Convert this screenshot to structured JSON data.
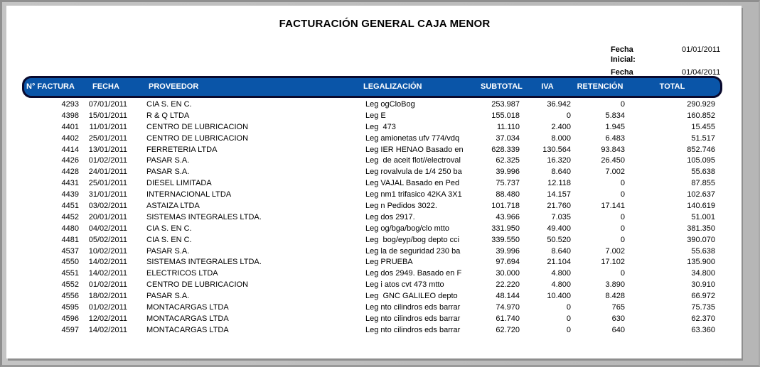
{
  "report": {
    "title": "FACTURACIÓN GENERAL CAJA MENOR",
    "fecha_inicial_label": "Fecha Inicial:",
    "fecha_inicial_value": "01/01/2011",
    "fecha_final_label": "Fecha Final:",
    "fecha_final_value": "01/04/2011"
  },
  "colors": {
    "header_bar_fill": "#0a55a8",
    "header_bar_border": "#0a0a2e",
    "header_text": "#ffffff",
    "body_text": "#000000",
    "page_background": "#ffffff",
    "window_background": "#bdbdbd"
  },
  "table": {
    "columns": [
      "N° FACTURA",
      "FECHA",
      "PROVEEDOR",
      "LEGALIZACIÓN",
      "SUBTOTAL",
      "IVA",
      "RETENCIÓN",
      "TOTAL"
    ],
    "rows": [
      {
        "factura": "4293",
        "fecha": "07/01/2011",
        "proveedor": "CIA S. EN C.",
        "legalizacion": "Leg ogCloBog",
        "subtotal": "253.987",
        "iva": "36.942",
        "retencion": "0",
        "total": "290.929"
      },
      {
        "factura": "4398",
        "fecha": "15/01/2011",
        "proveedor": "R & Q LTDA",
        "legalizacion": "Leg E",
        "subtotal": "155.018",
        "iva": "0",
        "retencion": "5.834",
        "total": "160.852"
      },
      {
        "factura": "4401",
        "fecha": "11/01/2011",
        "proveedor": "CENTRO DE LUBRICACION",
        "legalizacion": "Leg  473",
        "subtotal": "11.110",
        "iva": "2.400",
        "retencion": "1.945",
        "total": "15.455"
      },
      {
        "factura": "4402",
        "fecha": "25/01/2011",
        "proveedor": "CENTRO DE LUBRICACION",
        "legalizacion": "Leg amionetas ufv 774/vdq",
        "subtotal": "37.034",
        "iva": "8.000",
        "retencion": "6.483",
        "total": "51.517"
      },
      {
        "factura": "4414",
        "fecha": "13/01/2011",
        "proveedor": "FERRETERIA LTDA",
        "legalizacion": "Leg IER HENAO Basado en",
        "subtotal": "628.339",
        "iva": "130.564",
        "retencion": "93.843",
        "total": "852.746"
      },
      {
        "factura": "4426",
        "fecha": "01/02/2011",
        "proveedor": "PASAR S.A.",
        "legalizacion": "Leg  de aceit flot//electroval",
        "subtotal": "62.325",
        "iva": "16.320",
        "retencion": "26.450",
        "total": "105.095"
      },
      {
        "factura": "4428",
        "fecha": "24/01/2011",
        "proveedor": "PASAR S.A.",
        "legalizacion": "Leg rovalvula de 1/4 250 ba",
        "subtotal": "39.996",
        "iva": "8.640",
        "retencion": "7.002",
        "total": "55.638"
      },
      {
        "factura": "4431",
        "fecha": "25/01/2011",
        "proveedor": "DIESEL LIMITADA",
        "legalizacion": "Leg VAJAL Basado en Ped",
        "subtotal": "75.737",
        "iva": "12.118",
        "retencion": "0",
        "total": "87.855"
      },
      {
        "factura": "4439",
        "fecha": "31/01/2011",
        "proveedor": "INTERNACIONAL LTDA",
        "legalizacion": "Leg nm1 trifasico 42KA 3X1",
        "subtotal": "88.480",
        "iva": "14.157",
        "retencion": "0",
        "total": "102.637"
      },
      {
        "factura": "4451",
        "fecha": "03/02/2011",
        "proveedor": "ASTAIZA LTDA",
        "legalizacion": "Leg n Pedidos 3022.",
        "subtotal": "101.718",
        "iva": "21.760",
        "retencion": "17.141",
        "total": "140.619"
      },
      {
        "factura": "4452",
        "fecha": "20/01/2011",
        "proveedor": "SISTEMAS INTEGRALES LTDA.",
        "legalizacion": "Leg dos 2917.",
        "subtotal": "43.966",
        "iva": "7.035",
        "retencion": "0",
        "total": "51.001"
      },
      {
        "factura": "4480",
        "fecha": "04/02/2011",
        "proveedor": "CIA S. EN C.",
        "legalizacion": "Leg og/bga/bog/clo mtto",
        "subtotal": "331.950",
        "iva": "49.400",
        "retencion": "0",
        "total": "381.350"
      },
      {
        "factura": "4481",
        "fecha": "05/02/2011",
        "proveedor": "CIA S. EN C.",
        "legalizacion": "Leg  bog/eyp/bog depto cci",
        "subtotal": "339.550",
        "iva": "50.520",
        "retencion": "0",
        "total": "390.070"
      },
      {
        "factura": "4537",
        "fecha": "10/02/2011",
        "proveedor": "PASAR S.A.",
        "legalizacion": "Leg la de seguridad 230 ba",
        "subtotal": "39.996",
        "iva": "8.640",
        "retencion": "7.002",
        "total": "55.638"
      },
      {
        "factura": "4550",
        "fecha": "14/02/2011",
        "proveedor": "SISTEMAS INTEGRALES LTDA.",
        "legalizacion": "Leg PRUEBA",
        "subtotal": "97.694",
        "iva": "21.104",
        "retencion": "17.102",
        "total": "135.900"
      },
      {
        "factura": "4551",
        "fecha": "14/02/2011",
        "proveedor": "ELECTRICOS LTDA",
        "legalizacion": "Leg dos 2949. Basado en F",
        "subtotal": "30.000",
        "iva": "4.800",
        "retencion": "0",
        "total": "34.800"
      },
      {
        "factura": "4552",
        "fecha": "01/02/2011",
        "proveedor": "CENTRO DE LUBRICACION",
        "legalizacion": "Leg i atos cvt 473 mtto",
        "subtotal": "22.220",
        "iva": "4.800",
        "retencion": "3.890",
        "total": "30.910"
      },
      {
        "factura": "4556",
        "fecha": "18/02/2011",
        "proveedor": "PASAR S.A.",
        "legalizacion": "Leg  GNC GALILEO depto",
        "subtotal": "48.144",
        "iva": "10.400",
        "retencion": "8.428",
        "total": "66.972"
      },
      {
        "factura": "4595",
        "fecha": "01/02/2011",
        "proveedor": "MONTACARGAS LTDA",
        "legalizacion": "Leg nto cilindros eds barrar",
        "subtotal": "74.970",
        "iva": "0",
        "retencion": "765",
        "total": "75.735"
      },
      {
        "factura": "4596",
        "fecha": "12/02/2011",
        "proveedor": "MONTACARGAS LTDA",
        "legalizacion": "Leg nto cilindros eds barrar",
        "subtotal": "61.740",
        "iva": "0",
        "retencion": "630",
        "total": "62.370"
      },
      {
        "factura": "4597",
        "fecha": "14/02/2011",
        "proveedor": "MONTACARGAS LTDA",
        "legalizacion": "Leg nto cilindros eds barrar",
        "subtotal": "62.720",
        "iva": "0",
        "retencion": "640",
        "total": "63.360"
      }
    ]
  }
}
